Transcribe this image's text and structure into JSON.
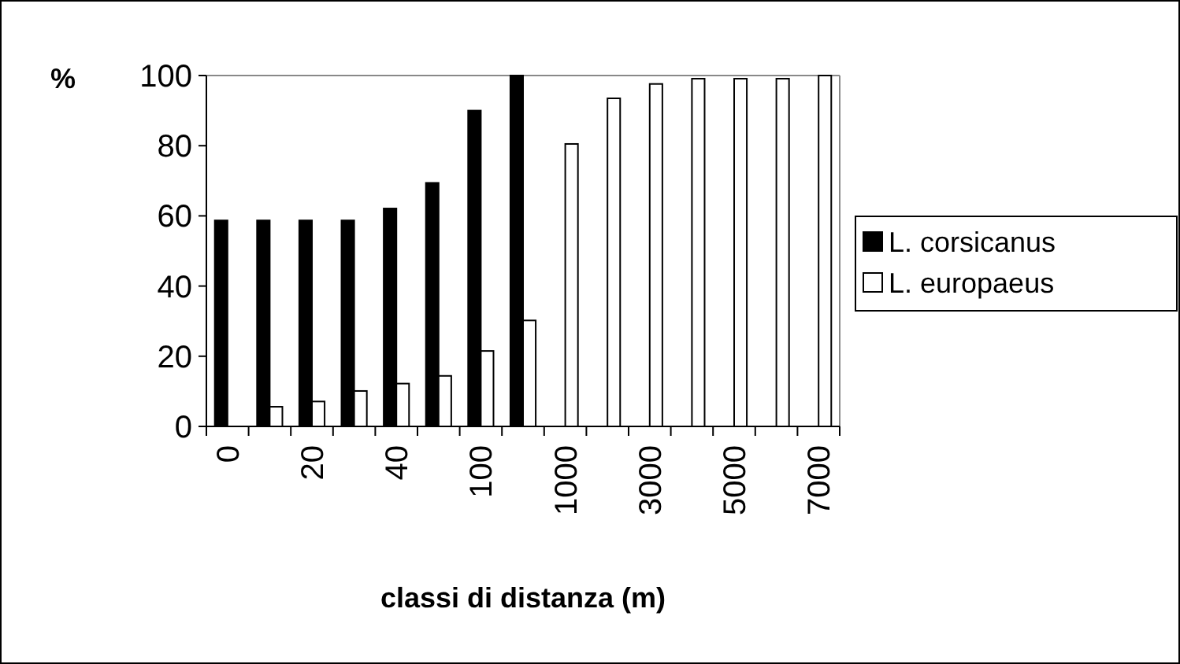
{
  "chart_data": {
    "type": "bar",
    "ylabel": "%",
    "xlabel": "classi di distanza (m)",
    "categories": [
      "0",
      null,
      "20",
      null,
      "40",
      null,
      "100",
      null,
      "1000",
      null,
      "3000",
      null,
      "5000",
      null,
      "7000"
    ],
    "series": [
      {
        "name": "L. corsicanus",
        "color": "#000000",
        "values": [
          58.7,
          58.7,
          58.7,
          58.7,
          62.1,
          69.4,
          90,
          100,
          null,
          null,
          null,
          null,
          null,
          null,
          null
        ]
      },
      {
        "name": "L. europaeus",
        "color": "#ffffff",
        "values": [
          null,
          5.6,
          7.1,
          10.1,
          12.2,
          14.4,
          21.5,
          30.2,
          80.5,
          93.5,
          97.6,
          99.1,
          99.1,
          99.1,
          100
        ]
      }
    ],
    "ylim": [
      0,
      100
    ],
    "yticks": [
      0,
      20,
      40,
      60,
      80,
      100
    ],
    "grid": false,
    "legend": "right"
  }
}
